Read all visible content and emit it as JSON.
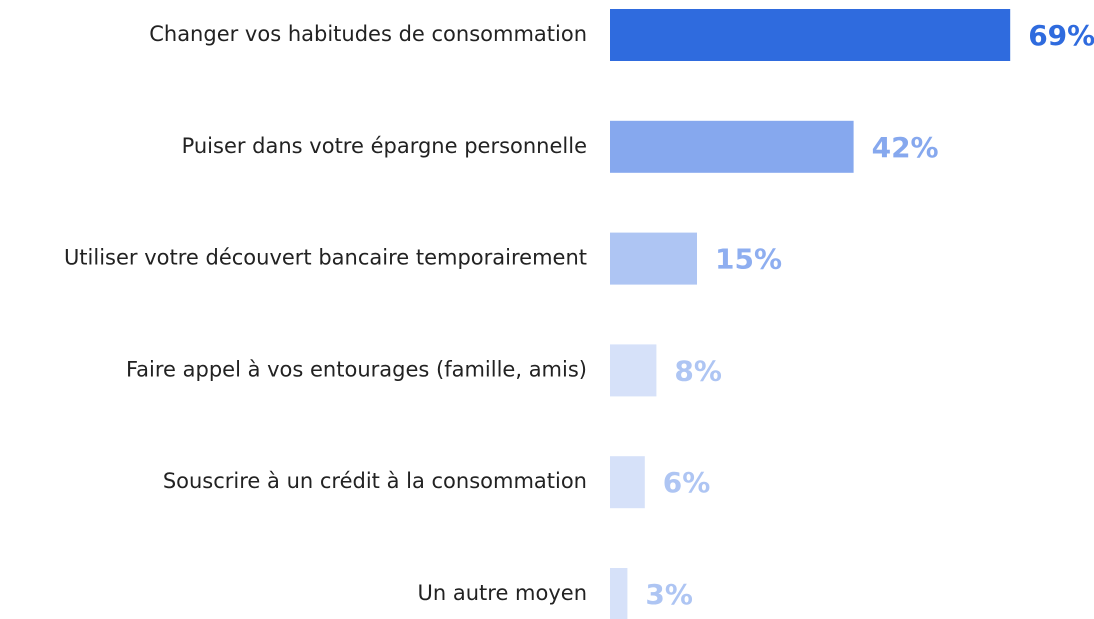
{
  "chart_data": {
    "type": "hbar",
    "categories": [
      "Changer vos habitudes de consommation",
      "Puiser dans votre épargne personnelle",
      "Utiliser votre découvert bancaire temporairement",
      "Faire appel à vos entourages (famille, amis)",
      "Souscrire à un crédit à la consommation",
      "Un autre moyen"
    ],
    "values": [
      69,
      42,
      15,
      8,
      6,
      3
    ],
    "value_labels": [
      "69%",
      "42%",
      "15%",
      "8%",
      "6%",
      "3%"
    ],
    "colors": [
      "#2f6bde",
      "#86a8ee",
      "#aec5f3",
      "#d6e1f9",
      "#d6e1f9",
      "#d6e1f9"
    ],
    "label_colors": [
      "#2f6bde",
      "#86a8ee",
      "#8eaef0",
      "#aec5f3",
      "#aec5f3",
      "#aec5f3"
    ]
  }
}
